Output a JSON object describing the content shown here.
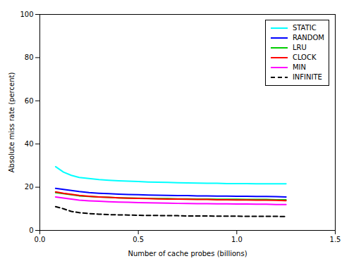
{
  "chart_data": {
    "type": "line",
    "xlabel": "Number of cache probes (billions)",
    "ylabel": "Absolute miss rate (percent)",
    "xlim": [
      0.0,
      1.5
    ],
    "ylim": [
      0,
      100
    ],
    "xticks": [
      {
        "value": 0,
        "label": "0.0"
      },
      0.5,
      {
        "value": 1,
        "label": "1.0"
      },
      1.5
    ],
    "yticks": [
      0,
      20,
      40,
      60,
      80,
      100
    ],
    "grid": false,
    "legend": "upper right",
    "x": [
      0.08,
      0.12,
      0.16,
      0.2,
      0.25,
      0.3,
      0.35,
      0.4,
      0.45,
      0.5,
      0.55,
      0.6,
      0.65,
      0.7,
      0.75,
      0.8,
      0.85,
      0.9,
      0.95,
      1.0,
      1.05,
      1.1,
      1.15,
      1.2,
      1.25
    ],
    "series": [
      {
        "name": "STATIC",
        "color": "#00ffff",
        "line_style": "solid",
        "values": [
          29.5,
          27.0,
          25.5,
          24.5,
          24.0,
          23.5,
          23.2,
          23.0,
          22.8,
          22.6,
          22.4,
          22.3,
          22.2,
          22.1,
          22.0,
          21.9,
          21.8,
          21.8,
          21.7,
          21.7,
          21.7,
          21.6,
          21.6,
          21.6,
          21.6
        ]
      },
      {
        "name": "RANDOM",
        "color": "#0000ff",
        "line_style": "solid",
        "values": [
          19.5,
          19.0,
          18.5,
          18.0,
          17.5,
          17.2,
          17.0,
          16.8,
          16.6,
          16.5,
          16.4,
          16.3,
          16.2,
          16.1,
          16.1,
          16.0,
          16.0,
          15.9,
          15.9,
          15.8,
          15.8,
          15.7,
          15.7,
          15.6,
          15.5
        ]
      },
      {
        "name": "LRU",
        "color": "#00cc00",
        "line_style": "solid",
        "values": [
          17.5,
          17.0,
          16.5,
          16.0,
          15.7,
          15.5,
          15.3,
          15.1,
          15.0,
          14.9,
          14.8,
          14.7,
          14.7,
          14.6,
          14.6,
          14.5,
          14.5,
          14.4,
          14.4,
          14.4,
          14.3,
          14.3,
          14.3,
          14.2,
          14.2
        ]
      },
      {
        "name": "CLOCK",
        "color": "#ff0000",
        "line_style": "solid",
        "values": [
          17.8,
          17.2,
          16.7,
          16.2,
          15.8,
          15.5,
          15.3,
          15.1,
          14.9,
          14.8,
          14.7,
          14.6,
          14.5,
          14.5,
          14.4,
          14.3,
          14.3,
          14.2,
          14.2,
          14.1,
          14.1,
          14.0,
          14.0,
          13.9,
          13.8
        ]
      },
      {
        "name": "MIN",
        "color": "#ff00ff",
        "line_style": "solid",
        "values": [
          15.5,
          15.0,
          14.5,
          14.0,
          13.7,
          13.5,
          13.3,
          13.1,
          13.0,
          12.9,
          12.8,
          12.7,
          12.6,
          12.5,
          12.5,
          12.4,
          12.4,
          12.3,
          12.3,
          12.2,
          12.2,
          12.1,
          12.1,
          12.0,
          12.0
        ]
      },
      {
        "name": "INFINITE",
        "color": "#000000",
        "line_style": "dashed",
        "values": [
          11.0,
          10.0,
          8.8,
          8.2,
          7.8,
          7.5,
          7.3,
          7.2,
          7.1,
          7.0,
          6.9,
          6.9,
          6.8,
          6.8,
          6.7,
          6.7,
          6.7,
          6.6,
          6.6,
          6.6,
          6.5,
          6.5,
          6.5,
          6.5,
          6.4
        ]
      }
    ]
  }
}
